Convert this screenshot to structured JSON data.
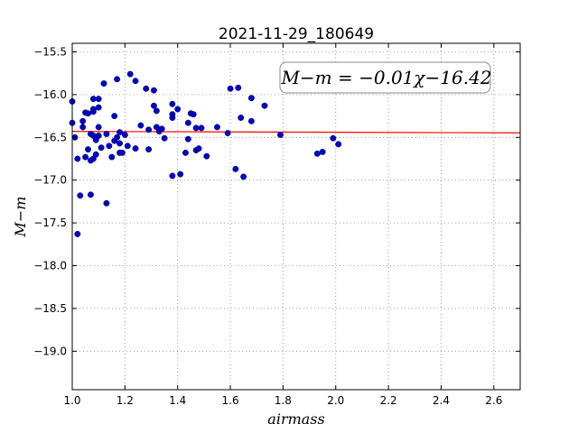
{
  "chart_data": {
    "type": "scatter",
    "title": "2021-11-29_180649",
    "xlabel": "airmass",
    "ylabel": "M−m",
    "xlim": [
      1.0,
      2.7
    ],
    "ylim": [
      -15.4,
      -19.45
    ],
    "y_inverted": true,
    "grid": true,
    "x_ticks": [
      "1.0",
      "1.2",
      "1.4",
      "1.6",
      "1.8",
      "2.0",
      "2.2",
      "2.4",
      "2.6"
    ],
    "x_tick_values": [
      1.0,
      1.2,
      1.4,
      1.6,
      1.8,
      2.0,
      2.2,
      2.4,
      2.6
    ],
    "y_ticks": [
      "−15.5",
      "−16.0",
      "−16.5",
      "−17.0",
      "−17.5",
      "−18.0",
      "−18.5",
      "−19.0"
    ],
    "y_tick_values": [
      -15.5,
      -16.0,
      -16.5,
      -17.0,
      -17.5,
      -18.0,
      -18.5,
      -19.0
    ],
    "annotation": "M−m = −0.01χ−16.42",
    "fit": {
      "slope": -0.01,
      "intercept": -16.42,
      "color": "#ff0000"
    },
    "point_color": "#0000cc",
    "points": [
      [
        1.0,
        -16.08
      ],
      [
        1.0,
        -16.33
      ],
      [
        1.01,
        -16.5
      ],
      [
        1.02,
        -16.75
      ],
      [
        1.02,
        -17.63
      ],
      [
        1.03,
        -17.18
      ],
      [
        1.04,
        -16.31
      ],
      [
        1.04,
        -16.38
      ],
      [
        1.05,
        -16.21
      ],
      [
        1.05,
        -16.73
      ],
      [
        1.06,
        -16.22
      ],
      [
        1.06,
        -16.64
      ],
      [
        1.07,
        -16.46
      ],
      [
        1.07,
        -16.77
      ],
      [
        1.07,
        -17.17
      ],
      [
        1.08,
        -16.05
      ],
      [
        1.08,
        -16.17
      ],
      [
        1.08,
        -16.2
      ],
      [
        1.08,
        -16.48
      ],
      [
        1.08,
        -16.75
      ],
      [
        1.09,
        -16.53
      ],
      [
        1.09,
        -16.7
      ],
      [
        1.1,
        -16.05
      ],
      [
        1.1,
        -16.15
      ],
      [
        1.1,
        -16.38
      ],
      [
        1.1,
        -16.48
      ],
      [
        1.11,
        -16.62
      ],
      [
        1.12,
        -15.87
      ],
      [
        1.13,
        -16.46
      ],
      [
        1.13,
        -17.27
      ],
      [
        1.14,
        -16.6
      ],
      [
        1.15,
        -16.73
      ],
      [
        1.16,
        -16.25
      ],
      [
        1.16,
        -16.54
      ],
      [
        1.17,
        -15.82
      ],
      [
        1.17,
        -16.5
      ],
      [
        1.18,
        -16.44
      ],
      [
        1.18,
        -16.57
      ],
      [
        1.18,
        -16.68
      ],
      [
        1.19,
        -16.68
      ],
      [
        1.2,
        -16.47
      ],
      [
        1.21,
        -16.6
      ],
      [
        1.22,
        -15.76
      ],
      [
        1.24,
        -15.84
      ],
      [
        1.24,
        -16.63
      ],
      [
        1.26,
        -16.36
      ],
      [
        1.28,
        -15.93
      ],
      [
        1.29,
        -16.41
      ],
      [
        1.29,
        -16.64
      ],
      [
        1.31,
        -15.95
      ],
      [
        1.31,
        -16.13
      ],
      [
        1.32,
        -16.19
      ],
      [
        1.32,
        -16.38
      ],
      [
        1.33,
        -16.43
      ],
      [
        1.34,
        -16.4
      ],
      [
        1.35,
        -16.51
      ],
      [
        1.38,
        -16.11
      ],
      [
        1.38,
        -16.23
      ],
      [
        1.38,
        -16.27
      ],
      [
        1.38,
        -16.95
      ],
      [
        1.4,
        -16.17
      ],
      [
        1.41,
        -16.93
      ],
      [
        1.43,
        -16.68
      ],
      [
        1.44,
        -16.33
      ],
      [
        1.44,
        -16.52
      ],
      [
        1.45,
        -16.22
      ],
      [
        1.46,
        -16.23
      ],
      [
        1.47,
        -16.65
      ],
      [
        1.47,
        -16.39
      ],
      [
        1.48,
        -16.63
      ],
      [
        1.49,
        -16.39
      ],
      [
        1.51,
        -16.72
      ],
      [
        1.55,
        -16.38
      ],
      [
        1.59,
        -16.45
      ],
      [
        1.6,
        -15.93
      ],
      [
        1.62,
        -16.87
      ],
      [
        1.63,
        -15.92
      ],
      [
        1.64,
        -16.27
      ],
      [
        1.65,
        -16.96
      ],
      [
        1.68,
        -16.04
      ],
      [
        1.68,
        -16.31
      ],
      [
        1.73,
        -16.13
      ],
      [
        1.79,
        -16.47
      ],
      [
        1.93,
        -16.69
      ],
      [
        1.95,
        -16.67
      ],
      [
        1.99,
        -16.51
      ],
      [
        2.01,
        -16.58
      ]
    ]
  }
}
